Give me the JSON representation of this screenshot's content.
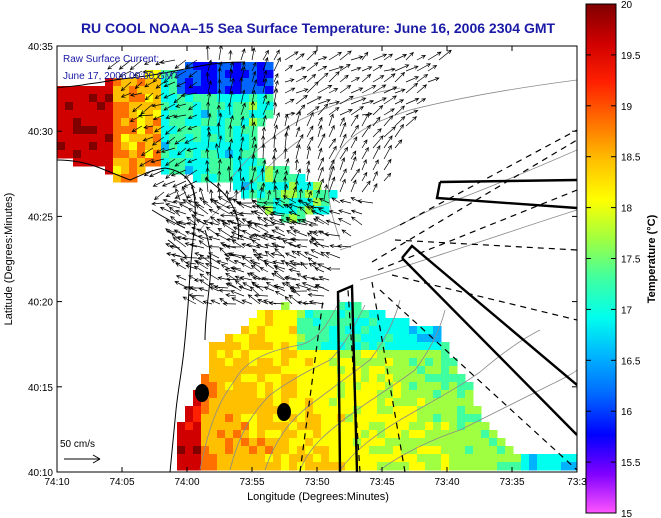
{
  "title": "RU COOL  NOAA–15  Sea Surface Temperature:  June 16, 2006 2304 GMT",
  "legend": {
    "line1": "Raw Surface Current:",
    "line2": "June 17, 2006 00:00 GMT"
  },
  "scale_label": "50 cm/s",
  "x_axis": {
    "label": "Longitude (Degrees:Minutes)",
    "ticks": [
      "74:10",
      "74:05",
      "74:00",
      "73:55",
      "73:50",
      "73:45",
      "73:40",
      "73:35",
      "73:3"
    ]
  },
  "y_axis": {
    "label": "Latitude (Degrees:Minutes)",
    "ticks": [
      "40:35",
      "40:30",
      "40:25",
      "40:20",
      "40:15",
      "40:10"
    ]
  },
  "colorbar": {
    "label": "Temperature (°C)",
    "ticks": [
      "20",
      "19.5",
      "19",
      "18.5",
      "18",
      "17.5",
      "17",
      "16.5",
      "16",
      "15.5",
      "15"
    ],
    "range": [
      15,
      20
    ],
    "colors": [
      "#ff55ff",
      "#8000ff",
      "#0000ff",
      "#0066ff",
      "#00b3ff",
      "#00ffee",
      "#40ffa0",
      "#a0ff40",
      "#ffff00",
      "#ffc000",
      "#ff7000",
      "#ff2000",
      "#d00000",
      "#800000"
    ]
  },
  "colors": {
    "frame": "#000000",
    "coast": "#000000",
    "bathymetry": "#8a8a8a",
    "station": "#000000"
  },
  "icons": {
    "station_markers": "black-dot",
    "scale_arrow": "right-arrow"
  }
}
